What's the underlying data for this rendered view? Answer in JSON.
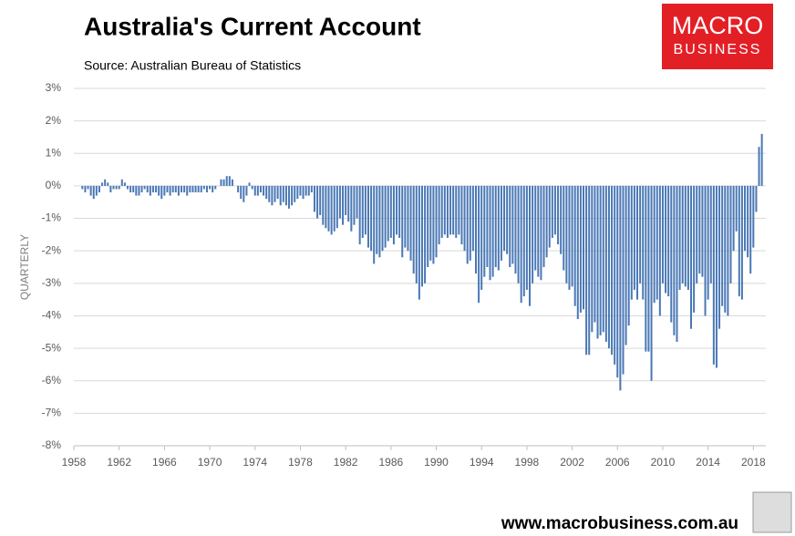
{
  "chart_data": {
    "type": "bar",
    "title": "Australia's Current Account",
    "subtitle": "Source: Australian Bureau of Statistics",
    "y_label": "QUARTERLY",
    "logo": [
      "MACRO",
      "BUSINESS"
    ],
    "footer": "www.macrobusiness.com.au",
    "color": "#4a78b5",
    "grid": true,
    "xlim": [
      1958,
      2019.1
    ],
    "ylim": [
      -8,
      3
    ],
    "xticks": [
      1958,
      1962,
      1966,
      1970,
      1974,
      1978,
      1982,
      1986,
      1990,
      1994,
      1998,
      2002,
      2006,
      2010,
      2014,
      2018
    ],
    "yticks": [
      {
        "value": 3,
        "label": "3%"
      },
      {
        "value": 2,
        "label": "2%"
      },
      {
        "value": 1,
        "label": "1%"
      },
      {
        "value": 0,
        "label": "0%"
      },
      {
        "value": -1,
        "label": "-1%"
      },
      {
        "value": -2,
        "label": "-2%"
      },
      {
        "value": -3,
        "label": "-3%"
      },
      {
        "value": -4,
        "label": "-4%"
      },
      {
        "value": -5,
        "label": "-5%"
      },
      {
        "value": -6,
        "label": "-6%"
      },
      {
        "value": -7,
        "label": "-7%"
      },
      {
        "value": -8,
        "label": "-8%"
      }
    ],
    "x": [
      1958.75,
      1959,
      1959.25,
      1959.5,
      1959.75,
      1960,
      1960.25,
      1960.5,
      1960.75,
      1961,
      1961.25,
      1961.5,
      1961.75,
      1962,
      1962.25,
      1962.5,
      1962.75,
      1963,
      1963.25,
      1963.5,
      1963.75,
      1964,
      1964.25,
      1964.5,
      1964.75,
      1965,
      1965.25,
      1965.5,
      1965.75,
      1966,
      1966.25,
      1966.5,
      1966.75,
      1967,
      1967.25,
      1967.5,
      1967.75,
      1968,
      1968.25,
      1968.5,
      1968.75,
      1969,
      1969.25,
      1969.5,
      1969.75,
      1970,
      1970.25,
      1970.5,
      1970.75,
      1971,
      1971.25,
      1971.5,
      1971.75,
      1972,
      1972.25,
      1972.5,
      1972.75,
      1973,
      1973.25,
      1973.5,
      1973.75,
      1974,
      1974.25,
      1974.5,
      1974.75,
      1975,
      1975.25,
      1975.5,
      1975.75,
      1976,
      1976.25,
      1976.5,
      1976.75,
      1977,
      1977.25,
      1977.5,
      1977.75,
      1978,
      1978.25,
      1978.5,
      1978.75,
      1979,
      1979.25,
      1979.5,
      1979.75,
      1980,
      1980.25,
      1980.5,
      1980.75,
      1981,
      1981.25,
      1981.5,
      1981.75,
      1982,
      1982.25,
      1982.5,
      1982.75,
      1983,
      1983.25,
      1983.5,
      1983.75,
      1984,
      1984.25,
      1984.5,
      1984.75,
      1985,
      1985.25,
      1985.5,
      1985.75,
      1986,
      1986.25,
      1986.5,
      1986.75,
      1987,
      1987.25,
      1987.5,
      1987.75,
      1988,
      1988.25,
      1988.5,
      1988.75,
      1989,
      1989.25,
      1989.5,
      1989.75,
      1990,
      1990.25,
      1990.5,
      1990.75,
      1991,
      1991.25,
      1991.5,
      1991.75,
      1992,
      1992.25,
      1992.5,
      1992.75,
      1993,
      1993.25,
      1993.5,
      1993.75,
      1994,
      1994.25,
      1994.5,
      1994.75,
      1995,
      1995.25,
      1995.5,
      1995.75,
      1996,
      1996.25,
      1996.5,
      1996.75,
      1997,
      1997.25,
      1997.5,
      1997.75,
      1998,
      1998.25,
      1998.5,
      1998.75,
      1999,
      1999.25,
      1999.5,
      1999.75,
      2000,
      2000.25,
      2000.5,
      2000.75,
      2001,
      2001.25,
      2001.5,
      2001.75,
      2002,
      2002.25,
      2002.5,
      2002.75,
      2003,
      2003.25,
      2003.5,
      2003.75,
      2004,
      2004.25,
      2004.5,
      2004.75,
      2005,
      2005.25,
      2005.5,
      2005.75,
      2006,
      2006.25,
      2006.5,
      2006.75,
      2007,
      2007.25,
      2007.5,
      2007.75,
      2008,
      2008.25,
      2008.5,
      2008.75,
      2009,
      2009.25,
      2009.5,
      2009.75,
      2010,
      2010.25,
      2010.5,
      2010.75,
      2011,
      2011.25,
      2011.5,
      2011.75,
      2012,
      2012.25,
      2012.5,
      2012.75,
      2013,
      2013.25,
      2013.5,
      2013.75,
      2014,
      2014.25,
      2014.5,
      2014.75,
      2015,
      2015.25,
      2015.5,
      2015.75,
      2016,
      2016.25,
      2016.5,
      2016.75,
      2017,
      2017.25,
      2017.5,
      2017.75,
      2018,
      2018.25,
      2018.5,
      2018.75
    ],
    "values": [
      -0.1,
      -0.2,
      -0.1,
      -0.3,
      -0.4,
      -0.3,
      -0.2,
      0.1,
      0.2,
      0.1,
      -0.2,
      -0.1,
      -0.1,
      -0.1,
      0.2,
      0.1,
      -0.1,
      -0.2,
      -0.2,
      -0.3,
      -0.3,
      -0.2,
      -0.1,
      -0.2,
      -0.3,
      -0.2,
      -0.2,
      -0.3,
      -0.4,
      -0.3,
      -0.2,
      -0.3,
      -0.2,
      -0.2,
      -0.3,
      -0.2,
      -0.2,
      -0.3,
      -0.2,
      -0.2,
      -0.2,
      -0.2,
      -0.2,
      -0.1,
      -0.2,
      -0.1,
      -0.2,
      -0.1,
      0.0,
      0.2,
      0.2,
      0.3,
      0.3,
      0.2,
      0.0,
      -0.2,
      -0.4,
      -0.5,
      -0.3,
      0.1,
      -0.1,
      -0.3,
      -0.3,
      -0.2,
      -0.3,
      -0.4,
      -0.5,
      -0.6,
      -0.5,
      -0.4,
      -0.6,
      -0.5,
      -0.6,
      -0.7,
      -0.6,
      -0.5,
      -0.4,
      -0.3,
      -0.4,
      -0.3,
      -0.3,
      -0.2,
      -0.8,
      -1.0,
      -0.9,
      -1.2,
      -1.3,
      -1.4,
      -1.5,
      -1.4,
      -1.3,
      -1.0,
      -1.2,
      -0.9,
      -1.1,
      -1.4,
      -1.2,
      -1.0,
      -1.8,
      -1.6,
      -1.5,
      -1.9,
      -2.0,
      -2.4,
      -2.1,
      -2.2,
      -2.0,
      -1.9,
      -1.7,
      -1.6,
      -1.8,
      -1.5,
      -1.6,
      -2.2,
      -1.9,
      -2.0,
      -2.3,
      -2.7,
      -3.0,
      -3.5,
      -3.1,
      -3.0,
      -2.5,
      -2.3,
      -2.4,
      -2.2,
      -1.8,
      -1.6,
      -1.5,
      -1.6,
      -1.5,
      -1.5,
      -1.6,
      -1.5,
      -1.8,
      -2.0,
      -2.4,
      -2.3,
      -2.0,
      -2.7,
      -3.6,
      -3.2,
      -2.8,
      -2.5,
      -2.9,
      -2.8,
      -2.5,
      -2.6,
      -2.3,
      -2.0,
      -2.1,
      -2.5,
      -2.4,
      -2.7,
      -3.0,
      -3.6,
      -3.4,
      -3.2,
      -3.7,
      -3.0,
      -2.6,
      -2.8,
      -2.9,
      -2.5,
      -2.2,
      -1.9,
      -1.6,
      -1.5,
      -1.8,
      -2.1,
      -2.6,
      -3.0,
      -3.2,
      -3.1,
      -3.7,
      -4.1,
      -3.9,
      -3.8,
      -5.2,
      -5.2,
      -4.5,
      -4.2,
      -4.7,
      -4.6,
      -4.5,
      -4.8,
      -5.0,
      -5.2,
      -5.5,
      -5.9,
      -6.3,
      -5.8,
      -4.9,
      -4.3,
      -3.5,
      -3.2,
      -3.5,
      -3.0,
      -3.5,
      -5.1,
      -5.1,
      -6.0,
      -3.6,
      -3.5,
      -4.0,
      -3.0,
      -3.3,
      -3.4,
      -4.2,
      -4.6,
      -4.8,
      -3.2,
      -3.0,
      -3.1,
      -3.2,
      -4.4,
      -3.9,
      -3.0,
      -2.7,
      -2.8,
      -4.0,
      -3.5,
      -3.0,
      -5.5,
      -5.6,
      -4.4,
      -3.7,
      -3.9,
      -4.0,
      -3.0,
      -2.0,
      -1.4,
      -3.4,
      -3.5,
      -2.0,
      -2.2,
      -2.7,
      -1.9,
      -0.8,
      1.2,
      1.6
    ]
  }
}
